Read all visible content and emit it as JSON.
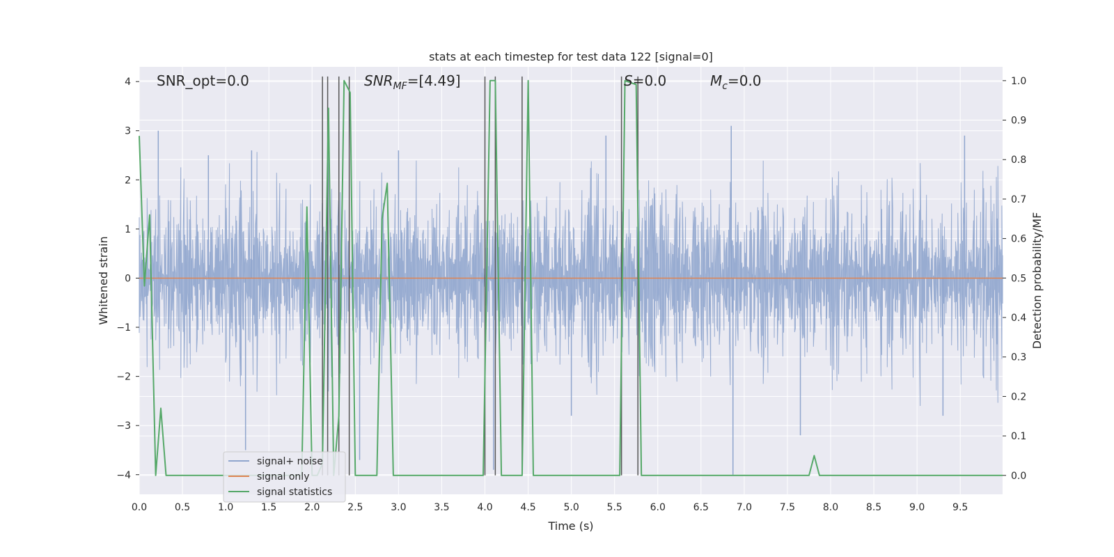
{
  "chart_data": {
    "type": "line",
    "title": "stats at each timestep for test data 122 [signal=0]",
    "xlabel": "Time (s)",
    "ylabel": "Whitened strain",
    "ylabel_right": "Detection probability/MF",
    "xlim": [
      0.0,
      9.99
    ],
    "ylim": [
      -4.4,
      4.3
    ],
    "ylim_right": [
      -0.048,
      1.035
    ],
    "xticks": [
      "0.0",
      "0.5",
      "1.0",
      "1.5",
      "2.0",
      "2.5",
      "3.0",
      "3.5",
      "4.0",
      "4.5",
      "5.0",
      "5.5",
      "6.0",
      "6.5",
      "7.0",
      "7.5",
      "8.0",
      "8.5",
      "9.0",
      "9.5"
    ],
    "yticks_left": [
      "4",
      "3",
      "2",
      "1",
      "0",
      "−1",
      "−2",
      "−3",
      "−4"
    ],
    "yticks_right": [
      "1.0",
      "0.9",
      "0.8",
      "0.7",
      "0.6",
      "0.5",
      "0.4",
      "0.3",
      "0.2",
      "0.1",
      "0.0"
    ],
    "grid": true,
    "legend_position": "lower-left",
    "annotations": {
      "snr_opt": "SNR_opt=0.0",
      "snr_mf_base": "SNR",
      "snr_mf_sub": "MF",
      "snr_mf_value": "=[4.49]",
      "s_base": "S",
      "s_value": "=0.0",
      "mc_base": "M",
      "mc_sub": "c",
      "mc_value": "=0.0"
    },
    "series": [
      {
        "name": "signal+ noise",
        "color": "#8fa5cd",
        "axis": "left",
        "description": "whitened strain noise, amplitude roughly ±2, fills band",
        "typical_amplitude": 1.5,
        "peak_positive": [
          [
            0.22,
            3.0
          ],
          [
            0.8,
            2.5
          ],
          [
            1.3,
            2.6
          ],
          [
            3.0,
            2.6
          ],
          [
            6.85,
            3.1
          ],
          [
            9.55,
            2.9
          ],
          [
            5.4,
            2.9
          ]
        ],
        "peak_negative": [
          [
            1.23,
            -3.5
          ],
          [
            2.55,
            -3.7
          ],
          [
            4.1,
            -3.9
          ],
          [
            5.0,
            -2.8
          ],
          [
            6.87,
            -4.0
          ],
          [
            7.65,
            -3.2
          ],
          [
            9.3,
            -2.8
          ]
        ]
      },
      {
        "name": "signal only",
        "color": "#dd8452",
        "axis": "left",
        "x": [
          0.0,
          9.99
        ],
        "y": [
          0.0,
          0.0
        ]
      },
      {
        "name": "signal statistics",
        "color": "#55a868",
        "axis": "right",
        "x": [
          0.0,
          0.06,
          0.12,
          0.19,
          0.25,
          0.31,
          1.88,
          1.94,
          2.0,
          2.06,
          2.12,
          2.19,
          2.25,
          2.31,
          2.37,
          2.44,
          2.5,
          2.75,
          2.81,
          2.87,
          2.94,
          3.98,
          4.06,
          4.12,
          4.19,
          4.43,
          4.5,
          4.56,
          5.56,
          5.62,
          5.75,
          5.81,
          7.75,
          7.81,
          7.87,
          9.99
        ],
        "y": [
          0.86,
          0.48,
          0.66,
          0.0,
          0.17,
          0.0,
          0.0,
          0.68,
          0.0,
          0.0,
          0.03,
          0.93,
          0.0,
          0.15,
          1.0,
          0.97,
          0.0,
          0.0,
          0.65,
          0.74,
          0.0,
          0.0,
          1.0,
          1.0,
          0.0,
          0.0,
          1.0,
          0.0,
          0.0,
          1.0,
          0.99,
          0.0,
          0.0,
          0.05,
          0.0,
          0.0
        ]
      }
    ],
    "vertical_markers": {
      "color": "#555555",
      "x": [
        2.12,
        2.18,
        2.31,
        2.43,
        4.0,
        4.12,
        4.43,
        5.58,
        5.77
      ],
      "y_top": 1.0,
      "y_bottom": 0.0
    }
  }
}
